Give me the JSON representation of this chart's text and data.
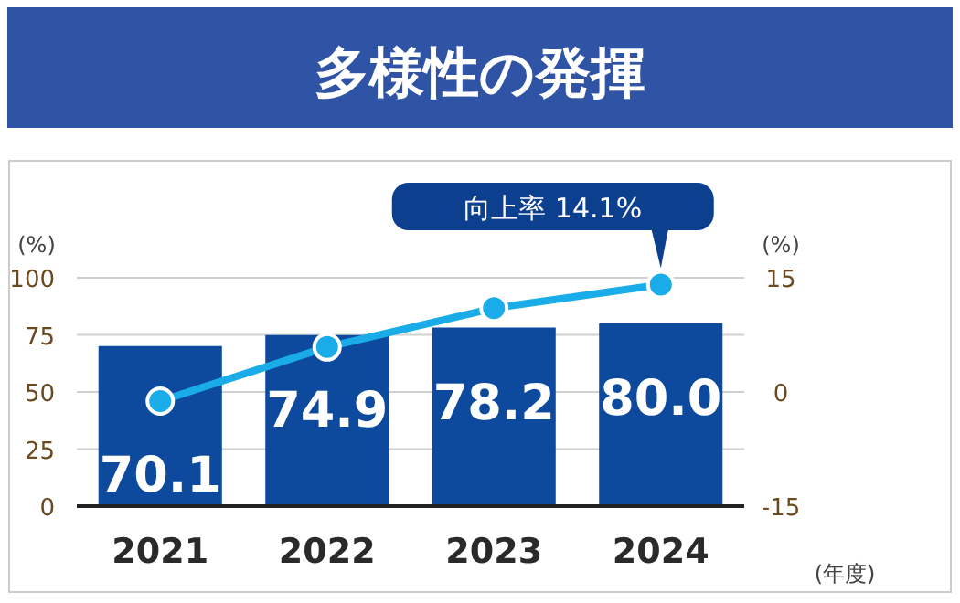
{
  "chart_data": {
    "type": "bar",
    "title": "多様性の発揮",
    "categories": [
      "2021",
      "2022",
      "2023",
      "2024"
    ],
    "series": [
      {
        "color": "#0d4a9e",
        "values": [
          70.1,
          74.9,
          78.2,
          80.0
        ],
        "value_labels": [
          "70.1",
          "74.9",
          "78.2",
          "80.0"
        ]
      },
      {
        "type": "line",
        "axis": "y2",
        "color": "#1aace8",
        "values": [
          -1.2,
          5.9,
          11.0,
          14.1
        ],
        "marker": "circle"
      }
    ],
    "ylim": [
      0,
      100
    ],
    "yticks": [
      0,
      25,
      50,
      75,
      100
    ],
    "y2lim": [
      -15,
      15
    ],
    "y2ticks": [
      -15,
      0,
      15
    ],
    "ylabel": "(%)",
    "y2label": "(%)",
    "xlabel": "(年度)",
    "grid": "y",
    "annotations": [
      "向上率 14.1%"
    ]
  }
}
